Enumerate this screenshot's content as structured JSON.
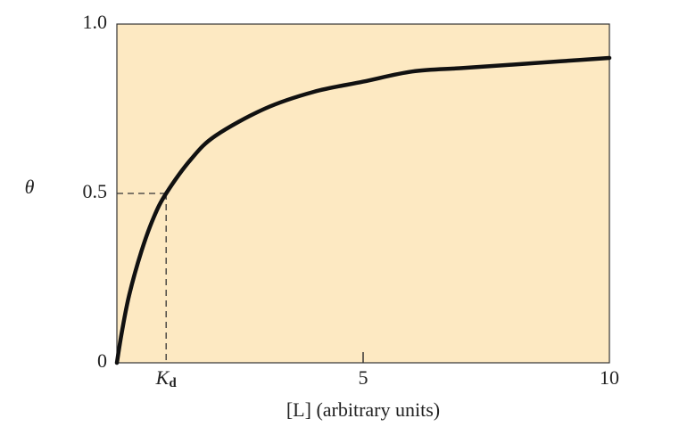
{
  "chart_data": {
    "type": "line",
    "y_label": "θ",
    "x_label": "[L] (arbitrary units)",
    "x": [
      0,
      0.1,
      0.25,
      0.5,
      0.75,
      1,
      1.5,
      2,
      3,
      4,
      5,
      6,
      7,
      8,
      9,
      10
    ],
    "series": [
      {
        "color": "#111111",
        "values": [
          0,
          0.09,
          0.2,
          0.33,
          0.43,
          0.5,
          0.6,
          0.67,
          0.75,
          0.8,
          0.83,
          0.86,
          0.87,
          0.88,
          0.89,
          0.9
        ]
      }
    ],
    "xlim": [
      0,
      10
    ],
    "ylim": [
      0,
      1
    ],
    "xticks": [
      {
        "value": 1,
        "label": "K",
        "subscript": "d"
      },
      5,
      10
    ],
    "yticks": [
      0,
      {
        "value": 0.5,
        "label": "0.5"
      },
      {
        "value": 1,
        "label": "1.0"
      }
    ],
    "background": "#fde9c2"
  }
}
